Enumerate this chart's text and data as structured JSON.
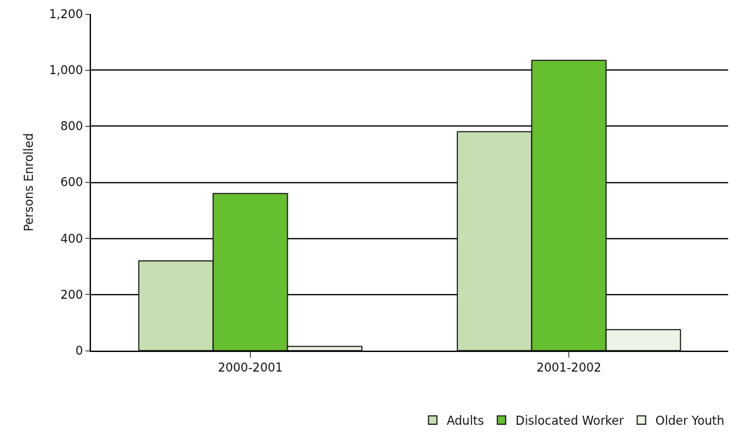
{
  "chart_data": {
    "type": "bar",
    "ylabel": "Persons Enrolled",
    "categories": [
      "2000-2001",
      "2001-2002"
    ],
    "series": [
      {
        "name": "Adults",
        "color": "#c5dfb2",
        "values": [
          320,
          780
        ]
      },
      {
        "name": "Dislocated Worker",
        "color": "#66bf2e",
        "values": [
          560,
          1035
        ]
      },
      {
        "name": "Older Youth",
        "color": "#edf3e6",
        "values": [
          15,
          75
        ]
      }
    ],
    "ylim": [
      0,
      1200
    ],
    "yticks": [
      {
        "value": 0,
        "label": "0"
      },
      {
        "value": 200,
        "label": "200"
      },
      {
        "value": 400,
        "label": "400"
      },
      {
        "value": 600,
        "label": "600"
      },
      {
        "value": 800,
        "label": "800"
      },
      {
        "value": 1000,
        "label": "1,000"
      },
      {
        "value": 1200,
        "label": "1,200"
      }
    ],
    "grid": "y",
    "legend": "bottom right"
  }
}
